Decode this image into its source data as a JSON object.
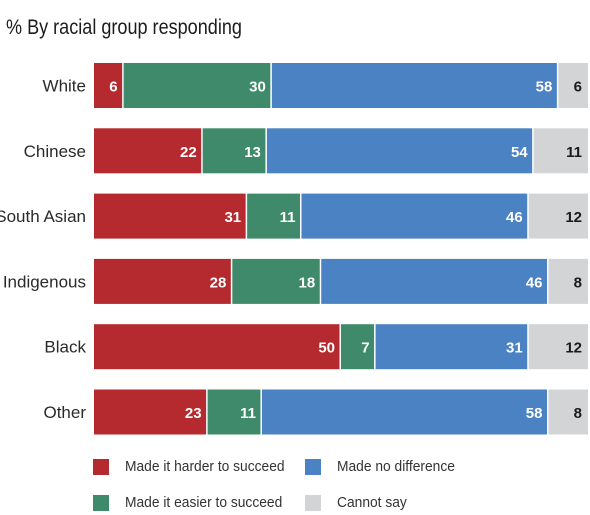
{
  "chart_data": {
    "type": "bar",
    "orientation": "horizontal",
    "stacked": true,
    "subtitle": "%   By racial group responding",
    "categories": [
      "White",
      "Chinese",
      "South Asian",
      "Indigenous",
      "Black",
      "Other"
    ],
    "series": [
      {
        "name": "Made it harder to succeed",
        "color": "#b52a2e",
        "values": [
          6,
          22,
          31,
          28,
          50,
          23
        ]
      },
      {
        "name": "Made it easier to succeed",
        "color": "#3f8a6a",
        "values": [
          30,
          13,
          11,
          18,
          7,
          11
        ]
      },
      {
        "name": "Made no difference",
        "color": "#4a82c3",
        "values": [
          58,
          54,
          46,
          46,
          31,
          58
        ]
      },
      {
        "name": "Cannot say",
        "color": "#d3d4d6",
        "values": [
          6,
          11,
          12,
          8,
          12,
          8
        ]
      }
    ],
    "xlim": [
      0,
      100
    ],
    "legend_position": "bottom"
  }
}
